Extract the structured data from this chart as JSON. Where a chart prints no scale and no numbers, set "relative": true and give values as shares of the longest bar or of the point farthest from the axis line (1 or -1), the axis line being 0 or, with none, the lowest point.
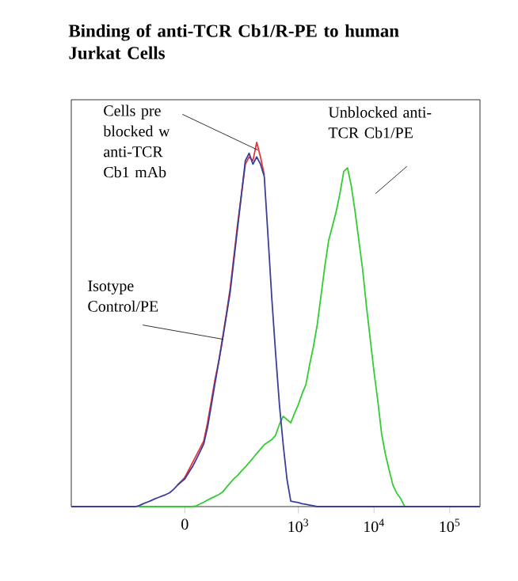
{
  "chart_data": {
    "type": "line",
    "title": "Binding of anti-TCR Cb1/R-PE to human Jurkat Cells",
    "relative": true,
    "categories": [
      null,
      null,
      null,
      null,
      null,
      null,
      null,
      null,
      null,
      null,
      null,
      null,
      null,
      null,
      null,
      null,
      null,
      null,
      null,
      null,
      null,
      null,
      null,
      null,
      null,
      null,
      null,
      null,
      null,
      null,
      "0",
      null,
      null,
      null,
      null,
      null,
      null,
      null,
      null,
      null,
      null,
      null,
      null,
      null,
      null,
      null,
      null,
      null,
      null,
      null,
      null,
      null,
      null,
      null,
      null,
      null,
      null,
      null,
      null,
      null,
      "10$^{3}$",
      null,
      null,
      null,
      null,
      null,
      null,
      null,
      null,
      null,
      null,
      null,
      null,
      null,
      null,
      null,
      null,
      null,
      null,
      null,
      "10$^{4}$",
      null,
      null,
      null,
      null,
      null,
      null,
      null,
      null,
      null,
      null,
      null,
      null,
      null,
      null,
      null,
      null,
      null,
      null,
      null,
      "10$^{5}$",
      null,
      null,
      null,
      null,
      null,
      null,
      null,
      null
    ],
    "series": [
      {
        "color": "#33cc33",
        "values": [
          null,
          null,
          null,
          null,
          null,
          null,
          null,
          null,
          null,
          null,
          null,
          null,
          null,
          null,
          null,
          null,
          null,
          null,
          0,
          0,
          0,
          0,
          0,
          0,
          0,
          0,
          0,
          0,
          0,
          0,
          0,
          0,
          0,
          0.002,
          0.007,
          0.012,
          0.018,
          0.023,
          0.028,
          0.033,
          0.04,
          0.053,
          0.065,
          0.077,
          0.086,
          0.098,
          0.109,
          0.121,
          0.133,
          0.146,
          0.158,
          0.17,
          0.177,
          0.184,
          0.196,
          0.226,
          0.248,
          0.239,
          0.23,
          0.256,
          0.28,
          0.31,
          0.335,
          0.39,
          0.44,
          0.5,
          0.58,
          0.66,
          0.73,
          0.77,
          0.81,
          0.86,
          0.92,
          0.93,
          0.88,
          0.81,
          0.73,
          0.65,
          0.55,
          0.46,
          0.37,
          0.29,
          0.2,
          0.144,
          0.1,
          0.059,
          0.037,
          0.023,
          0.002,
          null,
          null,
          null,
          null,
          null,
          null,
          null,
          null,
          null,
          null,
          null,
          null,
          null,
          null,
          null,
          null,
          null,
          null,
          null,
          null
        ]
      },
      {
        "color": "#e8343c",
        "values": [
          null,
          null,
          null,
          null,
          null,
          null,
          null,
          null,
          null,
          null,
          null,
          null,
          null,
          null,
          null,
          null,
          null,
          null,
          null,
          null,
          null,
          null,
          null,
          null,
          null,
          null,
          null,
          null,
          0.059,
          0.069,
          0.08,
          0.1,
          0.12,
          0.14,
          0.16,
          0.18,
          0.23,
          0.29,
          0.35,
          0.4,
          null,
          0.53,
          0.6,
          0.69,
          0.78,
          0.86,
          0.94,
          0.96,
          0.95,
          1.0,
          0.96,
          0.91,
          null,
          null,
          null,
          null,
          null,
          null,
          null,
          null,
          null,
          null,
          null,
          null,
          null,
          null,
          null,
          null,
          null,
          null,
          null,
          null,
          null,
          null,
          null,
          null,
          null,
          null,
          null,
          null,
          null,
          null,
          null,
          null,
          null,
          null,
          null,
          null,
          null,
          null,
          null,
          null,
          null,
          null,
          null,
          null,
          null,
          null,
          null,
          null,
          null,
          null,
          null,
          null,
          null,
          null,
          null,
          null,
          null
        ]
      },
      {
        "color": "#3a3f9a",
        "values": [
          0,
          0,
          0,
          0,
          0,
          0,
          0,
          0,
          0,
          0,
          0,
          0,
          0,
          0,
          0,
          0,
          0,
          0,
          0.003,
          0.008,
          0.012,
          0.016,
          0.021,
          0.025,
          0.029,
          0.033,
          0.038,
          0.047,
          0.058,
          0.067,
          0.076,
          0.093,
          0.109,
          0.129,
          0.15,
          0.172,
          0.217,
          0.278,
          0.34,
          0.4,
          0.46,
          0.525,
          0.59,
          0.68,
          0.77,
          0.86,
          0.95,
          0.97,
          0.94,
          0.96,
          0.94,
          0.906,
          0.74,
          0.57,
          0.42,
          0.28,
          0.17,
          0.075,
          0.015,
          0.013,
          0.011,
          0.008,
          0.006,
          0.004,
          0.002,
          0,
          0,
          0,
          0,
          0,
          0,
          0,
          0,
          0,
          0,
          0,
          0,
          0,
          0,
          0,
          0,
          0,
          0,
          0,
          0,
          0,
          0,
          0,
          0,
          0,
          0,
          0,
          0,
          0,
          0,
          0,
          0,
          0,
          0,
          0,
          0,
          0,
          0,
          0,
          0,
          0,
          0,
          0,
          0
        ]
      }
    ],
    "annotations": [
      "Cells pre blocked w anti-TCR Cb1 mAb",
      "Isotype Control/PE",
      "Unblocked anti-TCR Cb1/PE"
    ]
  }
}
